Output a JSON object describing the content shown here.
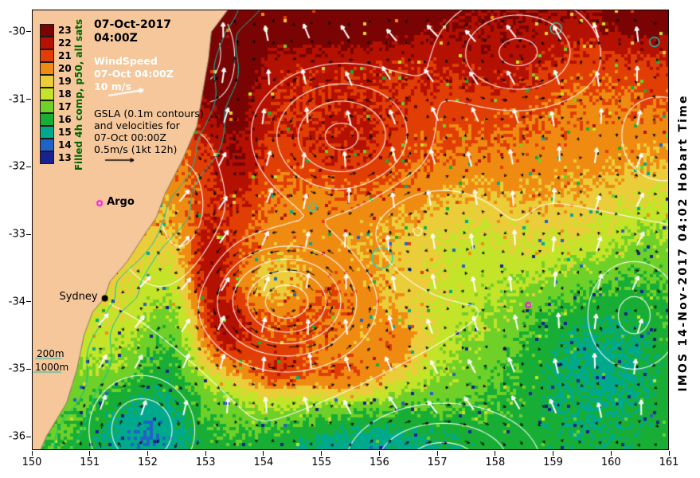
{
  "figure": {
    "title_line1": "07-Oct-2017",
    "title_line2": "04:00Z",
    "credit": "IMOS 14-Nov-2017 04:02 Hobart Time"
  },
  "colorbar": {
    "label": "Filled 4h comp, p50, all sats",
    "values": [
      23,
      22,
      21,
      20,
      19,
      18,
      17,
      16,
      15,
      14,
      13
    ],
    "colors": [
      "#7a0403",
      "#b51102",
      "#e13e05",
      "#f08b12",
      "#ebcd3a",
      "#c3e428",
      "#6fd028",
      "#18ae35",
      "#00a98c",
      "#2063c8",
      "#19208f"
    ]
  },
  "legend_wind": {
    "line1": "WindSpeed",
    "line2": "07-Oct 04:00Z",
    "line3": "10 m/s"
  },
  "legend_gsla": {
    "line1": "GSLA (0.1m contours)",
    "line2": "and velocities for",
    "line3": "07-Oct 00:00Z",
    "line4": "0.5m/s (1kt 12h)"
  },
  "labels": {
    "argo": "Argo",
    "sydney": "Sydney",
    "isobath_200": "200m",
    "isobath_1000": "1000m"
  },
  "axes": {
    "x_tick_values": [
      150,
      151,
      152,
      153,
      154,
      155,
      156,
      157,
      158,
      159,
      160,
      161
    ],
    "y_tick_values": [
      -30,
      -31,
      -32,
      -33,
      -34,
      -35,
      -36
    ],
    "lon_range": [
      150,
      161
    ],
    "lat_top": -29.67,
    "lat_bottom": -36.2
  },
  "map_data": {
    "type": "heatmap",
    "description": "Sea surface temperature (deg C, filled 4-hour composite) off SE Australia with GSLA 0.1m contours (white), surface current vectors (black) and wind vectors (white)",
    "temperature_range_c": [
      13,
      23
    ],
    "land_color": "#f5c79b",
    "contour_color": "#ffffff",
    "current_arrow_color": "#000000",
    "wind_arrow_color": "#ffffff",
    "isobath_color": "#00c2ae",
    "front_color": "#00e0cc",
    "isobath_offsets": [
      0.18,
      0.5
    ],
    "sst_base": {
      "t0": 21.9,
      "dt_dlat": 0.85
    },
    "sst_features": [
      {
        "lon": 153.1,
        "lat": -30.3,
        "amp": 2.6,
        "sx": 0.75,
        "sy": 0.8
      },
      {
        "lon": 155.2,
        "lat": -29.75,
        "amp": 2.1,
        "sx": 1.7,
        "sy": 0.5
      },
      {
        "lon": 153.5,
        "lat": -31.9,
        "amp": 2.0,
        "sx": 0.55,
        "sy": 1.3
      },
      {
        "lon": 155.4,
        "lat": -31.7,
        "amp": 1.1,
        "sx": 1.1,
        "sy": 0.9
      },
      {
        "lon": 154.4,
        "lat": -34.1,
        "amp": 3.2,
        "sx": 1.5,
        "sy": 0.85
      },
      {
        "lon": 154.25,
        "lat": -33.8,
        "amp": -2.4,
        "sx": 0.7,
        "sy": 0.5
      },
      {
        "lon": 153.35,
        "lat": -34.5,
        "amp": 2.2,
        "sx": 0.45,
        "sy": 0.55
      },
      {
        "lon": 154.2,
        "lat": -35.05,
        "amp": 2.6,
        "sx": 0.6,
        "sy": 0.4
      },
      {
        "lon": 155.4,
        "lat": -35.1,
        "amp": 2.4,
        "sx": 0.7,
        "sy": 0.4
      },
      {
        "lon": 156.3,
        "lat": -34.7,
        "amp": 1.8,
        "sx": 0.5,
        "sy": 0.5
      },
      {
        "lon": 153.05,
        "lat": -33.4,
        "amp": 2.2,
        "sx": 0.4,
        "sy": 0.8
      },
      {
        "lon": 152.35,
        "lat": -34.4,
        "amp": -1.7,
        "sx": 0.5,
        "sy": 1.1
      },
      {
        "lon": 159.8,
        "lat": -34.6,
        "amp": -2.6,
        "sx": 1.8,
        "sy": 1.5
      },
      {
        "lon": 161.0,
        "lat": -32.9,
        "amp": -1.4,
        "sx": 1.0,
        "sy": 1.2
      },
      {
        "lon": 151.9,
        "lat": -35.95,
        "amp": -2.1,
        "sx": 1.0,
        "sy": 0.8
      },
      {
        "lon": 155.9,
        "lat": -36.3,
        "amp": -1.9,
        "sx": 1.7,
        "sy": 0.75
      },
      {
        "lon": 159.6,
        "lat": -30.9,
        "amp": -0.7,
        "sx": 1.4,
        "sy": 0.9
      },
      {
        "lon": 160.6,
        "lat": -29.7,
        "amp": 1.9,
        "sx": 0.8,
        "sy": 0.5
      },
      {
        "lon": 157.5,
        "lat": -33.1,
        "amp": -0.9,
        "sx": 0.8,
        "sy": 0.7
      },
      {
        "lon": 158.3,
        "lat": -30.4,
        "amp": 0.7,
        "sx": 1.0,
        "sy": 0.7
      }
    ],
    "ssh_features": [
      {
        "lon": 155.35,
        "lat": -31.55,
        "amp": 0.42,
        "sx": 1.3,
        "sy": 0.9
      },
      {
        "lon": 154.4,
        "lat": -34.0,
        "amp": 0.55,
        "sx": 1.2,
        "sy": 0.8
      },
      {
        "lon": 158.4,
        "lat": -30.3,
        "amp": 0.32,
        "sx": 1.3,
        "sy": 0.8
      },
      {
        "lon": 152.9,
        "lat": -30.3,
        "amp": 0.3,
        "sx": 0.55,
        "sy": 0.7
      },
      {
        "lon": 157.1,
        "lat": -36.4,
        "amp": -0.35,
        "sx": 1.5,
        "sy": 0.8
      },
      {
        "lon": 151.9,
        "lat": -35.9,
        "amp": -0.28,
        "sx": 0.9,
        "sy": 0.8
      },
      {
        "lon": 160.4,
        "lat": -34.2,
        "amp": -0.22,
        "sx": 0.9,
        "sy": 0.9
      },
      {
        "lon": 156.6,
        "lat": -32.9,
        "amp": -0.12,
        "sx": 0.7,
        "sy": 0.6
      },
      {
        "lon": 160.9,
        "lat": -31.6,
        "amp": 0.18,
        "sx": 0.9,
        "sy": 0.8
      },
      {
        "lon": 152.6,
        "lat": -32.6,
        "amp": -0.18,
        "sx": 0.5,
        "sy": 0.9
      }
    ],
    "contour_levels": [
      -0.3,
      -0.2,
      -0.1,
      0,
      0.1,
      0.2,
      0.3,
      0.4,
      0.5
    ],
    "coastline": [
      [
        -29.6,
        153.45
      ],
      [
        -30.0,
        153.1
      ],
      [
        -30.4,
        153.05
      ],
      [
        -30.9,
        152.95
      ],
      [
        -31.4,
        152.85
      ],
      [
        -31.9,
        152.6
      ],
      [
        -32.4,
        152.3
      ],
      [
        -32.75,
        152.15
      ],
      [
        -33.0,
        151.95
      ],
      [
        -33.4,
        151.65
      ],
      [
        -33.7,
        151.35
      ],
      [
        -33.95,
        151.25
      ],
      [
        -34.15,
        151.05
      ],
      [
        -34.5,
        150.9
      ],
      [
        -35.0,
        150.78
      ],
      [
        -35.5,
        150.6
      ],
      [
        -36.0,
        150.25
      ],
      [
        -36.3,
        150.1
      ]
    ],
    "front_rings": [
      {
        "lon": 156.05,
        "lat": -33.35,
        "r": 13
      },
      {
        "lon": 159.05,
        "lat": -29.95,
        "r": 7
      },
      {
        "lon": 154.85,
        "lat": -32.6,
        "r": 5
      },
      {
        "lon": 160.75,
        "lat": -30.15,
        "r": 6
      }
    ],
    "markers": [
      {
        "name": "argo-float",
        "lon": 151.17,
        "lat": -32.54,
        "color": "#ff00ff",
        "style": "ring"
      },
      {
        "name": "argo-float-2",
        "lon": 158.57,
        "lat": -34.05,
        "color": "#ff00ff",
        "style": "ring"
      },
      {
        "name": "sydney",
        "lon": 151.26,
        "lat": -33.95,
        "color": "#000000",
        "style": "dot"
      }
    ]
  }
}
